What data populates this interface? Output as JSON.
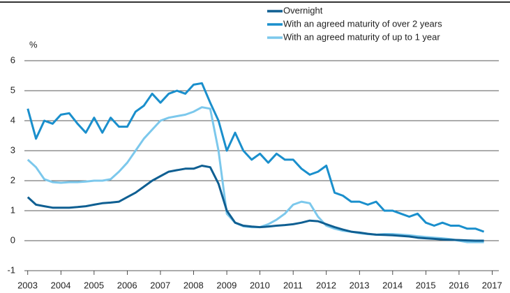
{
  "chart_data": {
    "type": "line",
    "y_label": "%",
    "x": [
      2003,
      2003.25,
      2003.5,
      2003.75,
      2004,
      2004.25,
      2004.5,
      2004.75,
      2005,
      2005.25,
      2005.5,
      2005.75,
      2006,
      2006.25,
      2006.5,
      2006.75,
      2007,
      2007.25,
      2007.5,
      2007.75,
      2008,
      2008.25,
      2008.5,
      2008.75,
      2009,
      2009.25,
      2009.5,
      2009.75,
      2010,
      2010.25,
      2010.5,
      2010.75,
      2011,
      2011.25,
      2011.5,
      2011.75,
      2012,
      2012.25,
      2012.5,
      2012.75,
      2013,
      2013.25,
      2013.5,
      2013.75,
      2014,
      2014.25,
      2014.5,
      2014.75,
      2015,
      2015.25,
      2015.5,
      2015.75,
      2016,
      2016.25,
      2016.5,
      2016.75
    ],
    "series": [
      {
        "name": "Overnight",
        "color": "#0f5f92",
        "values": [
          1.45,
          1.2,
          1.15,
          1.1,
          1.1,
          1.1,
          1.12,
          1.15,
          1.2,
          1.25,
          1.27,
          1.3,
          1.45,
          1.6,
          1.8,
          2.0,
          2.15,
          2.3,
          2.35,
          2.4,
          2.4,
          2.5,
          2.45,
          1.9,
          1.0,
          0.6,
          0.5,
          0.47,
          0.45,
          0.47,
          0.5,
          0.52,
          0.55,
          0.6,
          0.67,
          0.65,
          0.55,
          0.45,
          0.37,
          0.3,
          0.27,
          0.23,
          0.2,
          0.19,
          0.18,
          0.16,
          0.14,
          0.1,
          0.08,
          0.06,
          0.04,
          0.03,
          0.02,
          0.01,
          0.0,
          0.0
        ]
      },
      {
        "name": "With an agreed maturity of over 2 years",
        "color": "#1a8fcc",
        "values": [
          4.4,
          3.4,
          4.0,
          3.9,
          4.2,
          4.25,
          3.9,
          3.6,
          4.1,
          3.6,
          4.1,
          3.8,
          3.8,
          4.3,
          4.5,
          4.9,
          4.6,
          4.9,
          5.0,
          4.9,
          5.2,
          5.25,
          4.6,
          4.0,
          3.0,
          3.6,
          3.0,
          2.7,
          2.9,
          2.6,
          2.9,
          2.7,
          2.7,
          2.4,
          2.2,
          2.3,
          2.5,
          1.6,
          1.5,
          1.3,
          1.3,
          1.2,
          1.3,
          1.0,
          1.0,
          0.9,
          0.8,
          0.9,
          0.6,
          0.5,
          0.6,
          0.5,
          0.5,
          0.4,
          0.4,
          0.3
        ]
      },
      {
        "name": "With an agreed maturity of up to 1 year",
        "color": "#7cc8ec",
        "values": [
          2.7,
          2.45,
          2.05,
          1.95,
          1.93,
          1.95,
          1.95,
          1.97,
          2.0,
          2.0,
          2.05,
          2.3,
          2.6,
          3.0,
          3.4,
          3.7,
          4.0,
          4.1,
          4.15,
          4.2,
          4.3,
          4.45,
          4.4,
          3.0,
          0.9,
          0.6,
          0.48,
          0.45,
          0.45,
          0.55,
          0.7,
          0.9,
          1.2,
          1.3,
          1.25,
          0.8,
          0.5,
          0.4,
          0.33,
          0.3,
          0.25,
          0.22,
          0.2,
          0.22,
          0.22,
          0.2,
          0.18,
          0.15,
          0.12,
          0.1,
          0.08,
          0.05,
          0.0,
          -0.05,
          -0.05,
          -0.05
        ]
      }
    ],
    "xlim": [
      2002.9,
      2017.2
    ],
    "xticks": [
      2003,
      2004,
      2005,
      2006,
      2007,
      2008,
      2009,
      2010,
      2011,
      2012,
      2013,
      2014,
      2015,
      2016,
      2017
    ],
    "ylim": [
      -1,
      6
    ],
    "yticks": [
      -1,
      0,
      1,
      2,
      3,
      4,
      5,
      6
    ],
    "grid": true
  }
}
